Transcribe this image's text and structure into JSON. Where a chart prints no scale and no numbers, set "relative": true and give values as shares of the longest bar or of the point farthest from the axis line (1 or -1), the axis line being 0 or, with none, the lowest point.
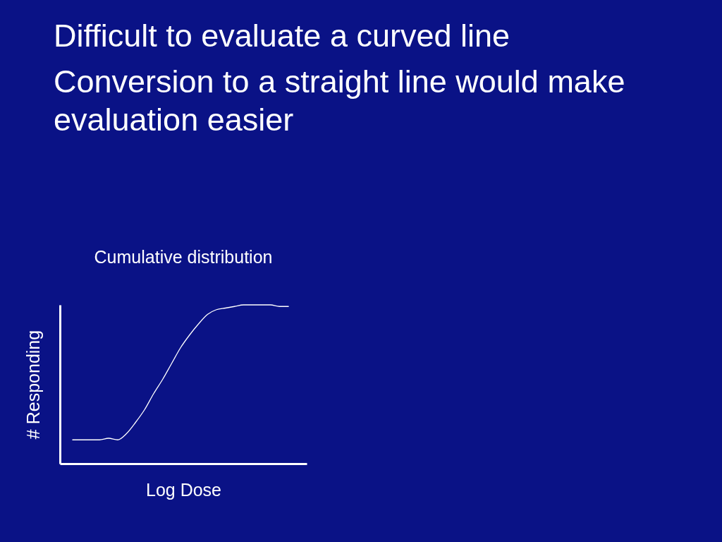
{
  "chart_data": {
    "type": "line",
    "title": "Cumulative distribution",
    "xlabel": "Log Dose",
    "ylabel": "# Responding",
    "relative": true,
    "categories": [
      null,
      null,
      null,
      null,
      null,
      null,
      null,
      null,
      null,
      null,
      null,
      null,
      null,
      null,
      null,
      null,
      null,
      null,
      null,
      null,
      null,
      null,
      null,
      null,
      null
    ],
    "series": [
      {
        "color": "#ffffff",
        "values": [
          0.15,
          0.15,
          0.15,
          0.15,
          0.16,
          0.15,
          0.19,
          0.26,
          0.34,
          0.44,
          0.53,
          0.63,
          0.73,
          0.81,
          0.88,
          0.94,
          0.97,
          0.98,
          0.99,
          1.0,
          1.0,
          1.0,
          1.0,
          0.99,
          0.99
        ]
      }
    ],
    "annotations": [
      "Difficult to evaluate a curved line",
      "Conversion to a straight line would make evaluation easier"
    ]
  }
}
